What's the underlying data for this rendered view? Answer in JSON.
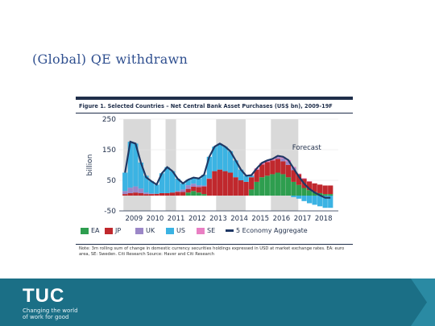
{
  "slide": {
    "title": "(Global) QE withdrawn"
  },
  "figure": {
    "title": "Figure 1. Selected Countries – Net Central Bank Asset Purchases (US$ bn), 2009-19F",
    "note": "Note: 3m rolling sum of change in domestic currency securities holdings expressed in USD at market exchange rates. EA: euro area, SE: Sweden. Citi Research Source: Haver and Citi Research"
  },
  "chart_data": {
    "type": "area",
    "title": "Figure 1. Selected Countries – Net Central Bank Asset Purchases (US$ bn), 2009-19F",
    "ylabel": "billion",
    "xlabel": "",
    "ylim": [
      -50,
      250
    ],
    "yticks": [
      -50,
      50,
      150,
      250
    ],
    "xticks": [
      "2009",
      "2010",
      "2011",
      "2012",
      "2013",
      "2014",
      "2015",
      "2016",
      "2017",
      "2018"
    ],
    "annotation": "Forecast",
    "legend_position": "bottom",
    "x": [
      2009.0,
      2009.25,
      2009.5,
      2009.75,
      2010.0,
      2010.25,
      2010.5,
      2010.75,
      2011.0,
      2011.25,
      2011.5,
      2011.75,
      2012.0,
      2012.25,
      2012.5,
      2012.75,
      2013.0,
      2013.25,
      2013.5,
      2013.75,
      2014.0,
      2014.25,
      2014.5,
      2014.75,
      2015.0,
      2015.25,
      2015.5,
      2015.75,
      2016.0,
      2016.25,
      2016.5,
      2016.75,
      2017.0,
      2017.25,
      2017.5,
      2017.75,
      2018.0,
      2018.25,
      2018.5,
      2018.75
    ],
    "series": [
      {
        "name": "EA",
        "color": "#2e9e4f",
        "values": [
          0,
          0,
          0,
          0,
          0,
          0,
          0,
          0,
          0,
          0,
          0,
          0,
          10,
          15,
          10,
          5,
          0,
          0,
          0,
          0,
          0,
          0,
          0,
          0,
          20,
          45,
          60,
          65,
          70,
          75,
          70,
          60,
          45,
          35,
          25,
          18,
          12,
          8,
          5,
          5
        ]
      },
      {
        "name": "JP",
        "color": "#c0282d",
        "values": [
          5,
          8,
          10,
          8,
          5,
          5,
          6,
          8,
          8,
          10,
          12,
          12,
          12,
          14,
          18,
          25,
          55,
          80,
          85,
          80,
          75,
          60,
          50,
          45,
          40,
          40,
          42,
          45,
          45,
          45,
          42,
          40,
          38,
          35,
          30,
          28,
          28,
          28,
          28,
          28
        ]
      },
      {
        "name": "UK",
        "color": "#9b87c7",
        "values": [
          10,
          18,
          20,
          15,
          5,
          2,
          0,
          0,
          0,
          0,
          3,
          8,
          12,
          10,
          6,
          3,
          2,
          0,
          0,
          0,
          0,
          0,
          0,
          0,
          0,
          0,
          0,
          0,
          0,
          5,
          10,
          12,
          8,
          0,
          0,
          0,
          0,
          0,
          0,
          0
        ]
      },
      {
        "name": "US",
        "color": "#3bb3e3",
        "values": [
          60,
          150,
          140,
          85,
          55,
          40,
          30,
          65,
          85,
          70,
          40,
          20,
          18,
          20,
          22,
          35,
          70,
          80,
          85,
          80,
          70,
          55,
          35,
          20,
          5,
          0,
          0,
          0,
          0,
          0,
          0,
          0,
          -5,
          -10,
          -18,
          -25,
          -30,
          -35,
          -40,
          -40
        ]
      },
      {
        "name": "SE",
        "color": "#e97fc3",
        "values": [
          0,
          0,
          0,
          0,
          0,
          0,
          0,
          0,
          0,
          0,
          0,
          0,
          0,
          0,
          0,
          0,
          0,
          0,
          0,
          0,
          0,
          0,
          0,
          0,
          2,
          4,
          5,
          5,
          5,
          5,
          5,
          4,
          3,
          2,
          2,
          1,
          0,
          0,
          0,
          0
        ]
      },
      {
        "name": "5 Economy Aggregate",
        "color": "#1f3864",
        "values": [
          75,
          176,
          170,
          108,
          60,
          47,
          36,
          73,
          93,
          80,
          55,
          40,
          52,
          59,
          56,
          68,
          127,
          160,
          170,
          160,
          145,
          115,
          85,
          65,
          67,
          89,
          107,
          115,
          120,
          130,
          127,
          116,
          89,
          62,
          39,
          22,
          10,
          1,
          -7,
          -7
        ]
      }
    ]
  },
  "legend": {
    "ea": "EA",
    "jp": "JP",
    "uk": "UK",
    "us": "US",
    "se": "SE",
    "agg": "5 Economy Aggregate"
  },
  "footer": {
    "logo": "TUC",
    "tagline_line1": "Changing the world",
    "tagline_line2": "of work for good",
    "bg_color": "#1b6f86"
  }
}
